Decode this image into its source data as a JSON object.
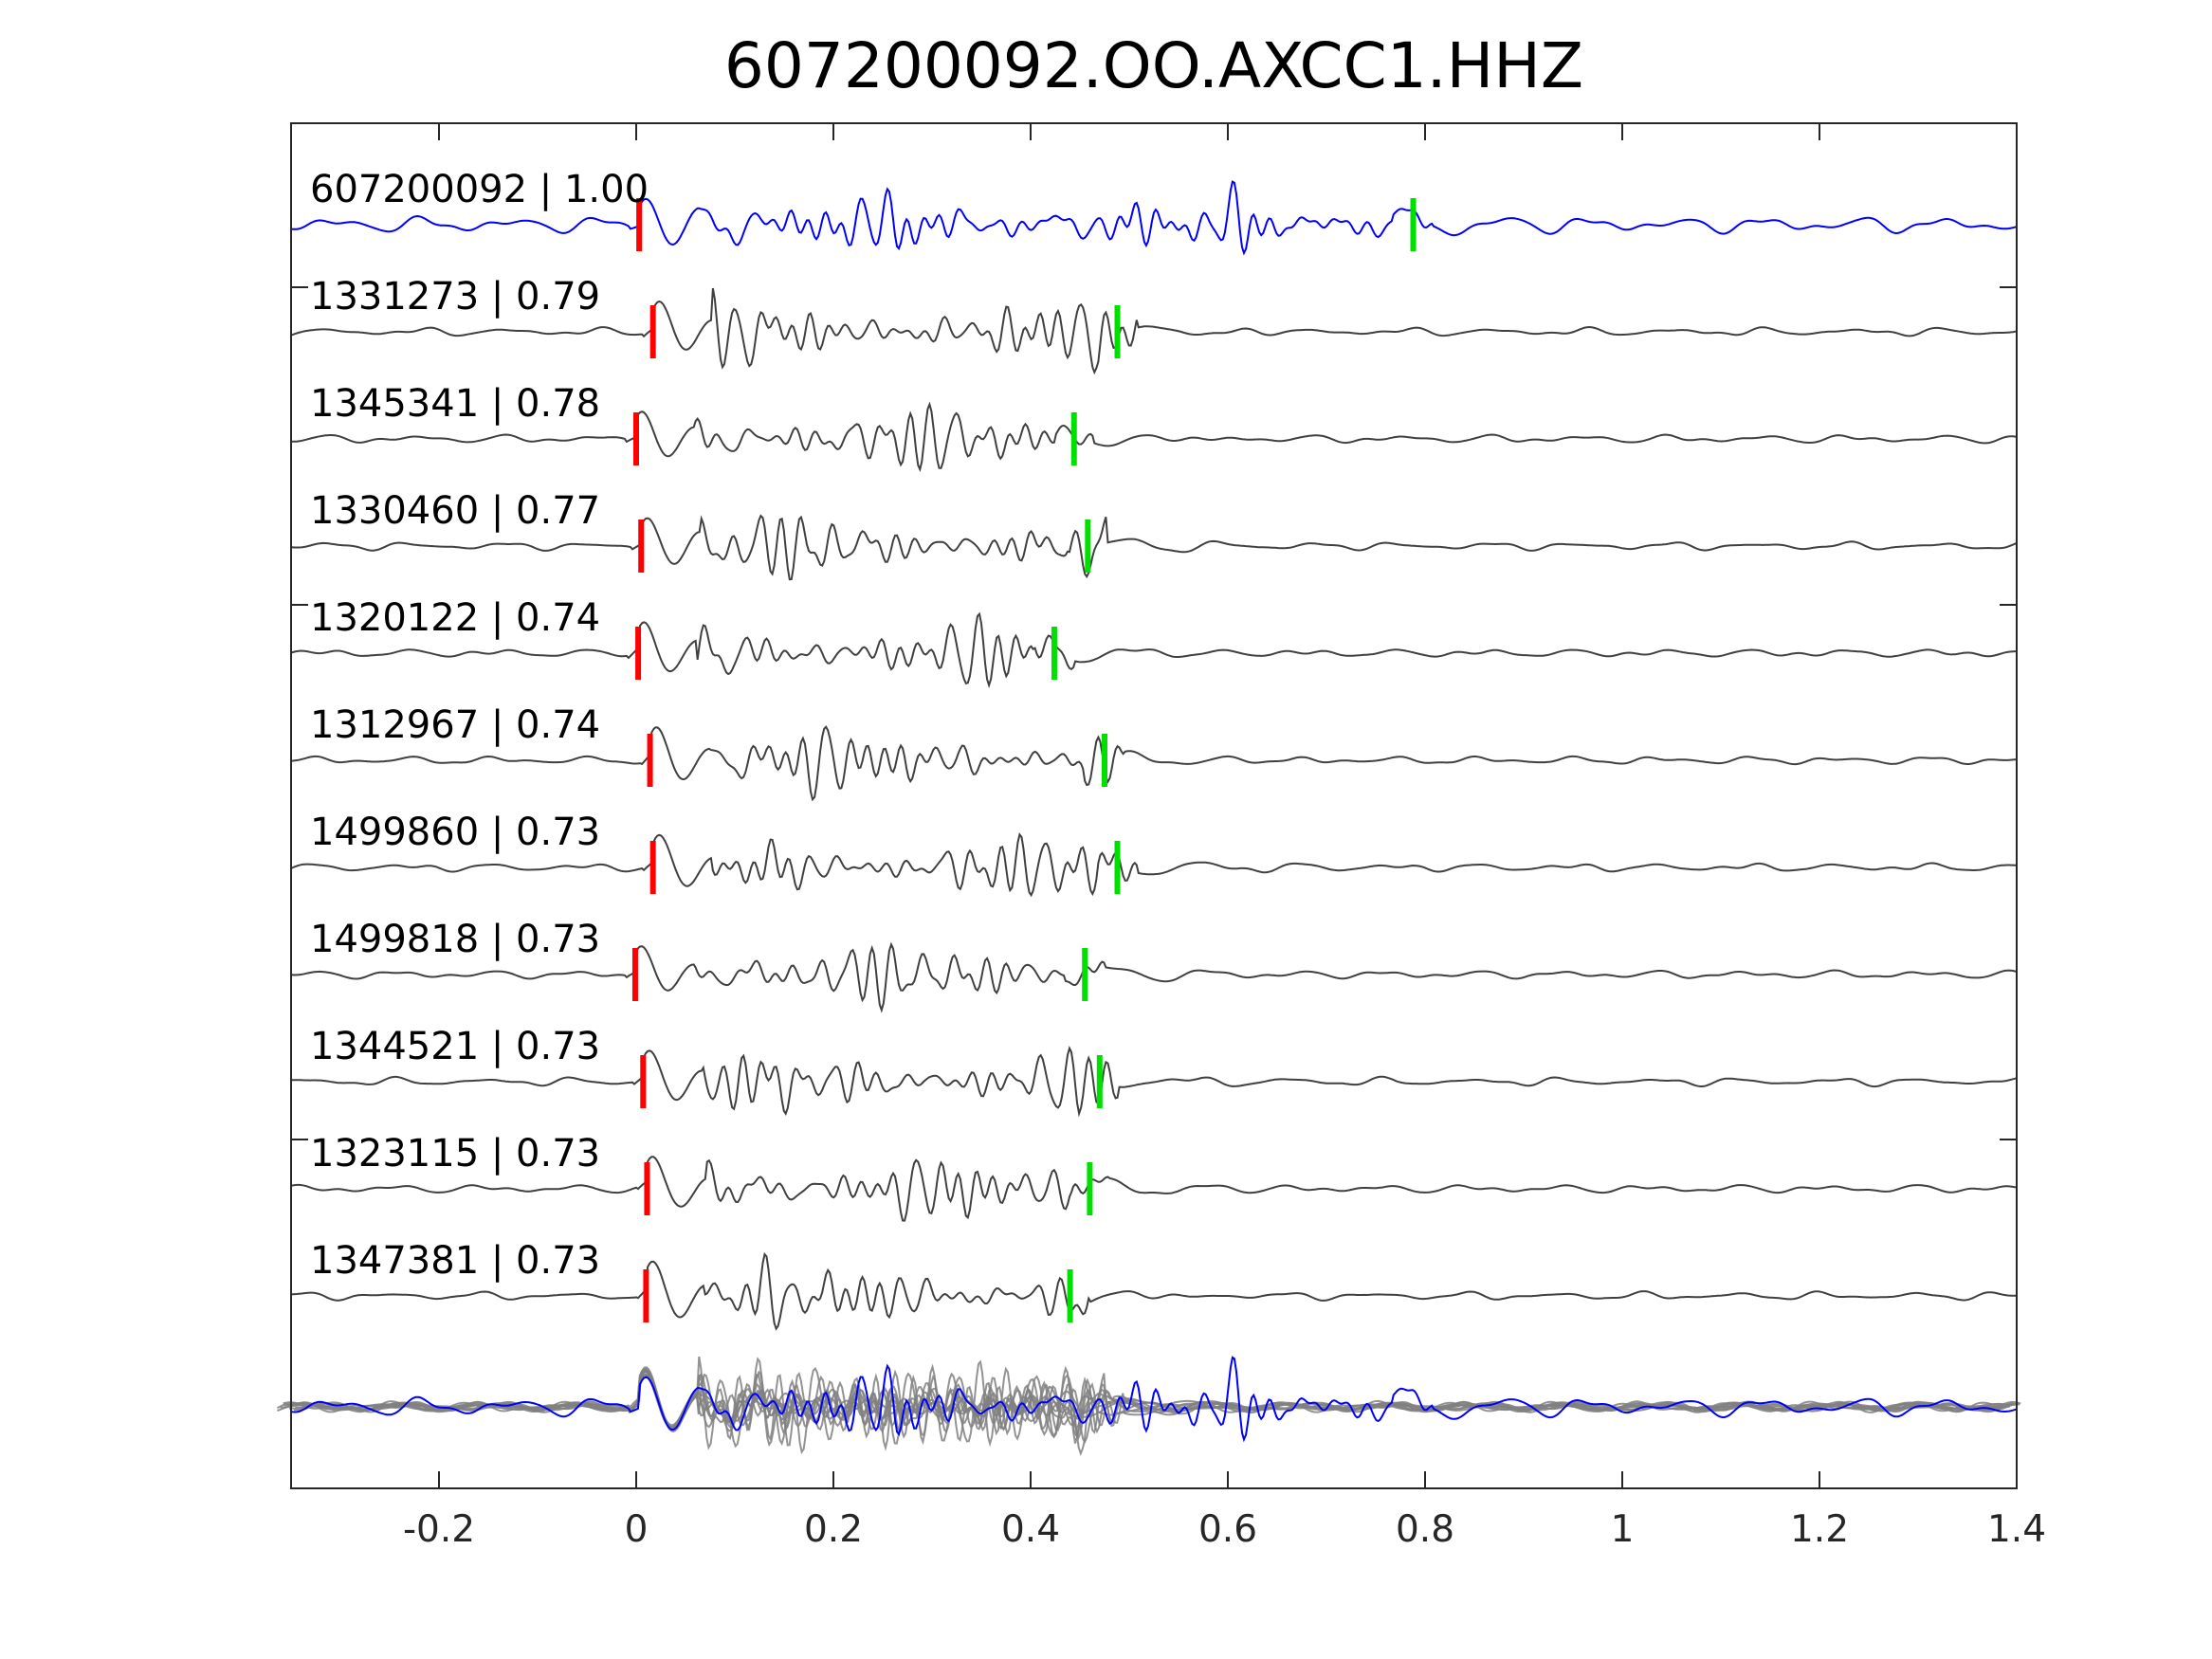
{
  "chart_data": {
    "type": "line",
    "title": "607200092.OO.AXCC1.HHZ",
    "xlabel": "",
    "ylabel": "",
    "xlim": [
      -0.35,
      1.4
    ],
    "xticks": [
      -0.2,
      0,
      0.2,
      0.4,
      0.6,
      0.8,
      1,
      1.2,
      1.4
    ],
    "xtick_labels": [
      "-0.2",
      "0",
      "0.2",
      "0.4",
      "0.6",
      "0.8",
      "1",
      "1.2",
      "1.4"
    ],
    "grid": false,
    "colors": {
      "template": "#0000ff",
      "match": "#404040",
      "stack": "#808080",
      "p_pick": "#ff0000",
      "s_pick": "#00e000",
      "axis": "#262626"
    },
    "traces": [
      {
        "label": "607200092 | 1.00",
        "id": "607200092",
        "cc": 1.0,
        "p_time": 0.003,
        "s_time": 0.788,
        "template": true
      },
      {
        "label": "1331273 | 0.79",
        "id": "1331273",
        "cc": 0.79,
        "p_time": 0.017,
        "s_time": 0.488
      },
      {
        "label": "1345341 | 0.78",
        "id": "1345341",
        "cc": 0.78,
        "p_time": 0.0,
        "s_time": 0.444
      },
      {
        "label": "1330460 | 0.77",
        "id": "1330460",
        "cc": 0.77,
        "p_time": 0.005,
        "s_time": 0.458
      },
      {
        "label": "1320122 | 0.74",
        "id": "1320122",
        "cc": 0.74,
        "p_time": 0.002,
        "s_time": 0.424
      },
      {
        "label": "1312967 | 0.74",
        "id": "1312967",
        "cc": 0.74,
        "p_time": 0.014,
        "s_time": 0.475
      },
      {
        "label": "1499860 | 0.73",
        "id": "1499860",
        "cc": 0.73,
        "p_time": 0.017,
        "s_time": 0.488
      },
      {
        "label": "1499818 | 0.73",
        "id": "1499818",
        "cc": 0.73,
        "p_time": -0.001,
        "s_time": 0.455
      },
      {
        "label": "1344521 | 0.73",
        "id": "1344521",
        "cc": 0.73,
        "p_time": 0.007,
        "s_time": 0.47
      },
      {
        "label": "1323115 | 0.73",
        "id": "1323115",
        "cc": 0.73,
        "p_time": 0.011,
        "s_time": 0.46
      },
      {
        "label": "1347381 | 0.73",
        "id": "1347381",
        "cc": 0.73,
        "p_time": 0.01,
        "s_time": 0.44
      }
    ],
    "stack_panel": true
  }
}
